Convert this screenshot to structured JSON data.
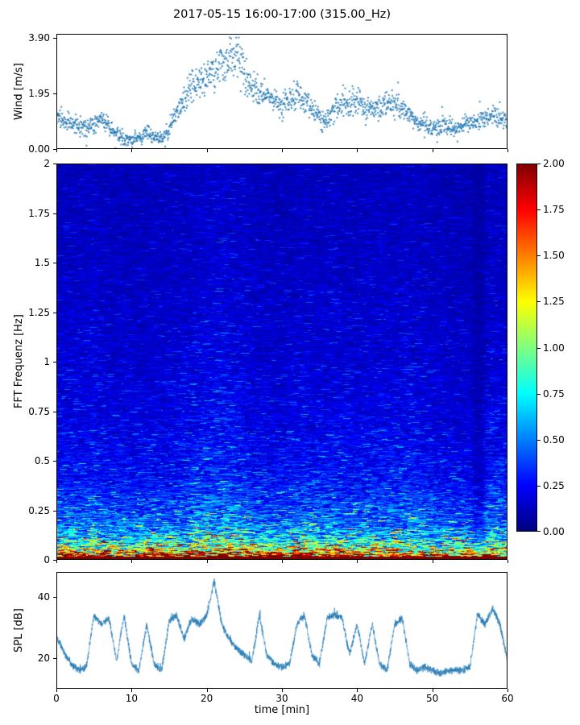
{
  "title": "2017-05-15 16:00-17:00 (315.00_Hz)",
  "x_axis": {
    "label": "time [min]",
    "tick_labels": [
      "0",
      "10",
      "20",
      "30",
      "40",
      "50",
      "60"
    ],
    "tick_values": [
      0,
      10,
      20,
      30,
      40,
      50,
      60
    ],
    "range": [
      0,
      60
    ]
  },
  "chart_data": [
    {
      "type": "scatter",
      "name": "wind-speed",
      "ylabel": "Wind [m/s]",
      "ylim": [
        0,
        4.05
      ],
      "ytick_labels": [
        "0.00",
        "1.95",
        "3.90"
      ],
      "ytick_values": [
        0,
        1.95,
        3.9
      ],
      "marker_color": "#1f77b4",
      "points_per_min": 26,
      "jitter": 0.3,
      "y_mean_per_min": [
        1.2,
        1.0,
        0.9,
        0.8,
        0.7,
        0.9,
        1.1,
        0.8,
        0.5,
        0.35,
        0.3,
        0.4,
        0.6,
        0.4,
        0.35,
        0.7,
        1.3,
        1.8,
        2.3,
        2.5,
        2.6,
        2.7,
        2.9,
        3.0,
        3.3,
        2.6,
        2.2,
        2.0,
        1.9,
        1.6,
        1.5,
        1.7,
        1.9,
        1.6,
        1.4,
        1.1,
        1.0,
        1.4,
        1.7,
        1.6,
        1.7,
        1.5,
        1.3,
        1.5,
        1.6,
        1.5,
        1.4,
        1.2,
        1.0,
        0.8,
        0.7,
        0.8,
        0.85,
        0.7,
        0.8,
        0.95,
        1.0,
        1.1,
        1.2,
        1.1,
        1.0
      ]
    },
    {
      "type": "heatmap",
      "name": "fft-spectrogram",
      "ylabel": "FFT Frequenz [Hz]",
      "ylim": [
        0,
        2
      ],
      "ytick_labels": [
        "0",
        "0.25",
        "0.5",
        "0.75",
        "1",
        "1.25",
        "1.5",
        "1.75",
        "2"
      ],
      "ytick_values": [
        0,
        0.25,
        0.5,
        0.75,
        1,
        1.25,
        1.5,
        1.75,
        2
      ],
      "clim": [
        0,
        2
      ],
      "colormap": "jet",
      "colorbar_tick_labels": [
        "0.00",
        "0.25",
        "0.50",
        "0.75",
        "1.00",
        "1.25",
        "1.50",
        "1.75",
        "2.00"
      ],
      "colorbar_tick_values": [
        0,
        0.25,
        0.5,
        0.75,
        1.0,
        1.25,
        1.5,
        1.75,
        2.0
      ],
      "freq_profile": {
        "f": [
          0,
          0.02,
          0.035,
          0.05,
          0.07,
          0.1,
          0.14,
          0.18,
          0.25,
          0.32,
          0.42,
          0.55,
          0.75,
          1.0,
          1.4,
          1.8,
          2.0
        ],
        "value": [
          2.2,
          2.1,
          1.8,
          1.4,
          1.1,
          0.85,
          0.68,
          0.55,
          0.45,
          0.38,
          0.3,
          0.26,
          0.22,
          0.19,
          0.16,
          0.14,
          0.13
        ]
      },
      "time_brightness": {
        "t": [
          0,
          4,
          5,
          6,
          10,
          15,
          18,
          20,
          23,
          25,
          27,
          30,
          33,
          34,
          37,
          38,
          40,
          43,
          47,
          50,
          53,
          55,
          55.8,
          56.6,
          57.2,
          58,
          60
        ],
        "mult": [
          1,
          1.05,
          1.15,
          1,
          0.95,
          1,
          1.1,
          1.25,
          1.25,
          1.15,
          1,
          0.95,
          1.1,
          1,
          1.1,
          1.05,
          1,
          1.05,
          1.1,
          0.95,
          0.9,
          0.85,
          0.55,
          0.6,
          1,
          1.05,
          1
        ]
      }
    },
    {
      "type": "line",
      "name": "sound-pressure-level",
      "ylabel": "SPL [dB]",
      "ylim": [
        10,
        48
      ],
      "ytick_labels": [
        "20",
        "40"
      ],
      "ytick_values": [
        20,
        40
      ],
      "line_color": "#1f77b4",
      "noise": 1.4,
      "y_per_min": [
        27,
        22,
        18,
        16,
        17,
        34,
        31,
        33,
        19,
        34,
        18,
        16,
        31,
        18,
        16,
        32,
        34,
        26,
        33,
        31,
        34,
        45,
        31,
        26,
        23,
        21,
        19,
        34,
        21,
        18,
        17,
        18,
        31,
        34,
        21,
        18,
        33,
        34,
        33,
        21,
        31,
        18,
        31,
        18,
        16,
        31,
        33,
        18,
        16,
        17,
        16,
        15,
        16,
        16,
        16,
        17,
        34,
        31,
        36,
        31,
        19
      ]
    }
  ]
}
